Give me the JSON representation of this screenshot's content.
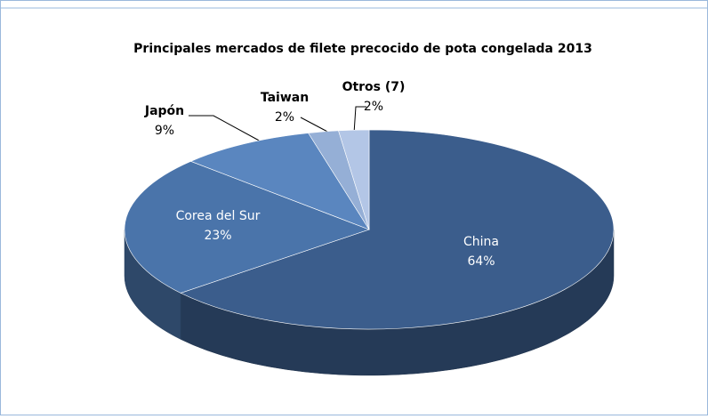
{
  "chart_data": {
    "type": "pie",
    "title": "Principales mercados de filete precocido de pota congelada 2013",
    "categories": [
      "China",
      "Corea del Sur",
      "Japón",
      "Taiwan",
      "Otros (7)"
    ],
    "values": [
      64,
      23,
      9,
      2,
      2
    ],
    "value_labels": [
      "64%",
      "23%",
      "9%",
      "2%",
      "2%"
    ],
    "colors": [
      "#3b5d8c",
      "#4a74aa",
      "#5a86bf",
      "#95afd6",
      "#b3c6e6"
    ]
  }
}
